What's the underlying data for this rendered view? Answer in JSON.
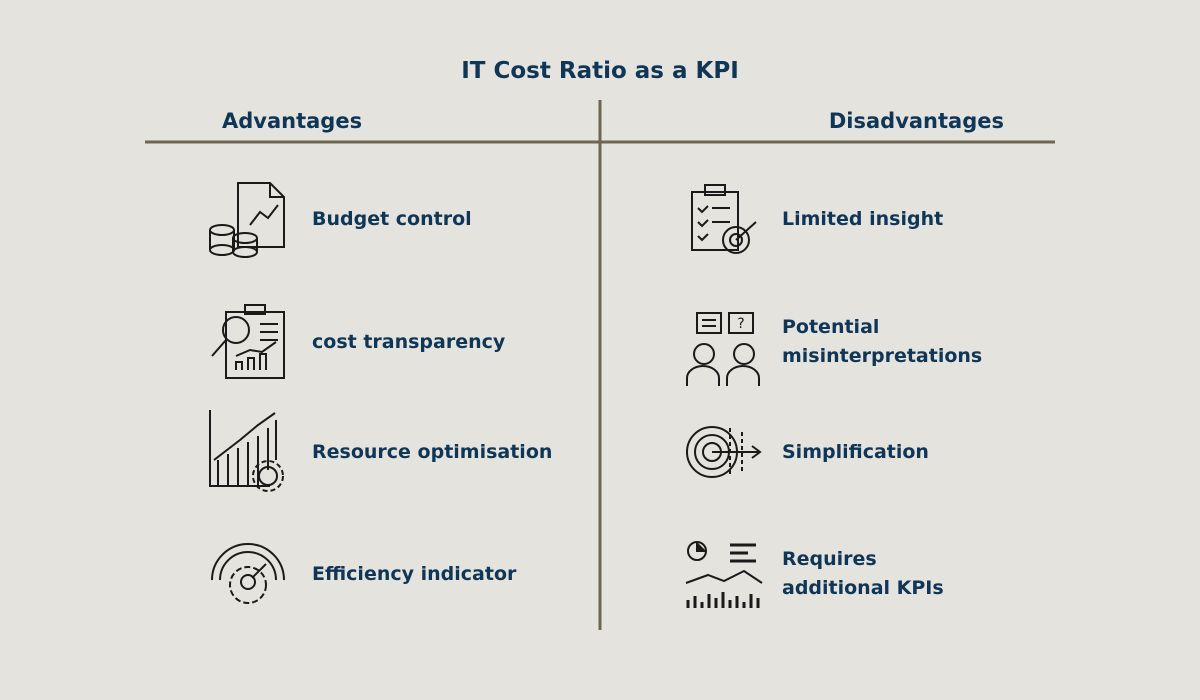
{
  "title": "IT Cost Ratio as a KPI",
  "advantages": {
    "heading": "Advantages",
    "items": [
      {
        "lines": [
          "Budget control"
        ]
      },
      {
        "lines": [
          "cost transparency"
        ]
      },
      {
        "lines": [
          "Resource optimisation"
        ]
      },
      {
        "lines": [
          "Efficiency indicator"
        ]
      }
    ]
  },
  "disadvantages": {
    "heading": "Disadvantages",
    "items": [
      {
        "lines": [
          "Limited insight"
        ]
      },
      {
        "lines": [
          "Potential",
          "misinterpretations"
        ]
      },
      {
        "lines": [
          "Simplification"
        ]
      },
      {
        "lines": [
          "Requires",
          "additional KPIs"
        ]
      }
    ]
  }
}
